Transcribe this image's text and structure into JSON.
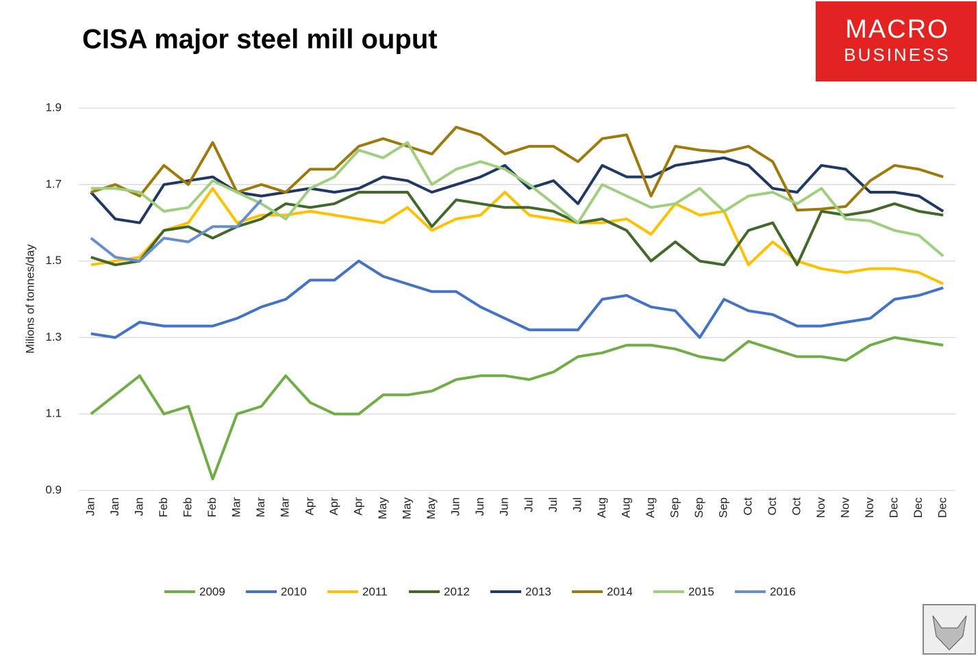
{
  "chart_data": {
    "type": "line",
    "title": "CISA major steel mill ouput",
    "logo": [
      "MACRO",
      "BUSINESS"
    ],
    "y_label": "Milions of tonnes/day",
    "categories": [
      "Jan",
      "Jan",
      "Jan",
      "Feb",
      "Feb",
      "Feb",
      "Mar",
      "Mar",
      "Mar",
      "Apr",
      "Apr",
      "Apr",
      "May",
      "May",
      "May",
      "Jun",
      "Jun",
      "Jun",
      "Jul",
      "Jul",
      "Jul",
      "Aug",
      "Aug",
      "Aug",
      "Sep",
      "Sep",
      "Sep",
      "Oct",
      "Oct",
      "Oct",
      "Nov",
      "Nov",
      "Nov",
      "Dec",
      "Dec",
      "Dec"
    ],
    "ylim": [
      0.9,
      1.9
    ],
    "yticks": [
      0.9,
      1.1,
      1.3,
      1.5,
      1.7,
      1.9
    ],
    "grid": true,
    "legend": "bottom",
    "series": [
      {
        "name": "2009",
        "color": "#70ad47",
        "values": [
          1.1,
          1.15,
          1.2,
          1.1,
          1.12,
          0.93,
          1.1,
          1.12,
          1.2,
          1.13,
          1.1,
          1.1,
          1.15,
          1.15,
          1.16,
          1.19,
          1.2,
          1.2,
          1.19,
          1.21,
          1.25,
          1.26,
          1.28,
          1.28,
          1.27,
          1.25,
          1.24,
          1.29,
          1.27,
          1.25,
          1.25,
          1.24,
          1.28,
          1.3,
          1.29,
          1.28
        ]
      },
      {
        "name": "2010",
        "color": "#4472c4",
        "values": [
          1.31,
          1.3,
          1.34,
          1.33,
          1.33,
          1.33,
          1.35,
          1.38,
          1.4,
          1.45,
          1.45,
          1.5,
          1.46,
          1.44,
          1.42,
          1.42,
          1.38,
          1.35,
          1.32,
          1.32,
          1.32,
          1.4,
          1.41,
          1.38,
          1.37,
          1.3,
          1.4,
          1.37,
          1.36,
          1.33,
          1.33,
          1.34,
          1.35,
          1.4,
          1.41,
          1.43
        ]
      },
      {
        "name": "2011",
        "color": "#ffc000",
        "values": [
          1.49,
          1.5,
          1.51,
          1.58,
          1.6,
          1.69,
          1.6,
          1.62,
          1.62,
          1.63,
          1.62,
          1.61,
          1.6,
          1.64,
          1.58,
          1.61,
          1.62,
          1.68,
          1.62,
          1.61,
          1.6,
          1.6,
          1.61,
          1.57,
          1.65,
          1.62,
          1.63,
          1.49,
          1.55,
          1.5,
          1.48,
          1.47,
          1.48,
          1.48,
          1.47,
          1.44
        ]
      },
      {
        "name": "2012",
        "color": "#43682b",
        "values": [
          1.51,
          1.49,
          1.5,
          1.58,
          1.59,
          1.56,
          1.59,
          1.61,
          1.65,
          1.64,
          1.65,
          1.68,
          1.68,
          1.68,
          1.59,
          1.66,
          1.65,
          1.64,
          1.64,
          1.63,
          1.6,
          1.61,
          1.58,
          1.5,
          1.55,
          1.5,
          1.49,
          1.58,
          1.6,
          1.49,
          1.63,
          1.62,
          1.63,
          1.65,
          1.63,
          1.62
        ]
      },
      {
        "name": "2013",
        "color": "#203864",
        "values": [
          1.68,
          1.61,
          1.6,
          1.7,
          1.71,
          1.72,
          1.68,
          1.67,
          1.68,
          1.69,
          1.68,
          1.69,
          1.72,
          1.71,
          1.68,
          1.7,
          1.72,
          1.75,
          1.69,
          1.71,
          1.65,
          1.75,
          1.72,
          1.72,
          1.75,
          1.76,
          1.77,
          1.75,
          1.69,
          1.68,
          1.75,
          1.74,
          1.68,
          1.68,
          1.67,
          1.63
        ]
      },
      {
        "name": "2014",
        "color": "#9e7a0c",
        "values": [
          1.68,
          1.7,
          1.67,
          1.75,
          1.7,
          1.81,
          1.68,
          1.7,
          1.68,
          1.74,
          1.74,
          1.8,
          1.82,
          1.8,
          1.78,
          1.85,
          1.83,
          1.78,
          1.8,
          1.8,
          1.76,
          1.82,
          1.83,
          1.67,
          1.8,
          1.79,
          1.785,
          1.8,
          1.76,
          1.633,
          1.636,
          1.643,
          1.71,
          1.75,
          1.74,
          1.72
        ]
      },
      {
        "name": "2015",
        "color": "#9fcf7e",
        "values": [
          1.69,
          1.69,
          1.68,
          1.63,
          1.64,
          1.71,
          1.68,
          1.65,
          1.61,
          1.69,
          1.72,
          1.79,
          1.77,
          1.81,
          1.7,
          1.74,
          1.76,
          1.74,
          1.7,
          1.65,
          1.6,
          1.7,
          1.67,
          1.64,
          1.65,
          1.69,
          1.63,
          1.67,
          1.68,
          1.65,
          1.69,
          1.61,
          1.605,
          1.58,
          1.567,
          1.513
        ]
      },
      {
        "name": "2016",
        "color": "#698ed0",
        "values": [
          1.56,
          1.51,
          1.5,
          1.56,
          1.55,
          1.59,
          1.59,
          1.66,
          null,
          null,
          null,
          null,
          null,
          null,
          null,
          null,
          null,
          null,
          null,
          null,
          null,
          null,
          null,
          null,
          null,
          null,
          null,
          null,
          null,
          null,
          null,
          null,
          null,
          null,
          null,
          null
        ]
      }
    ]
  }
}
